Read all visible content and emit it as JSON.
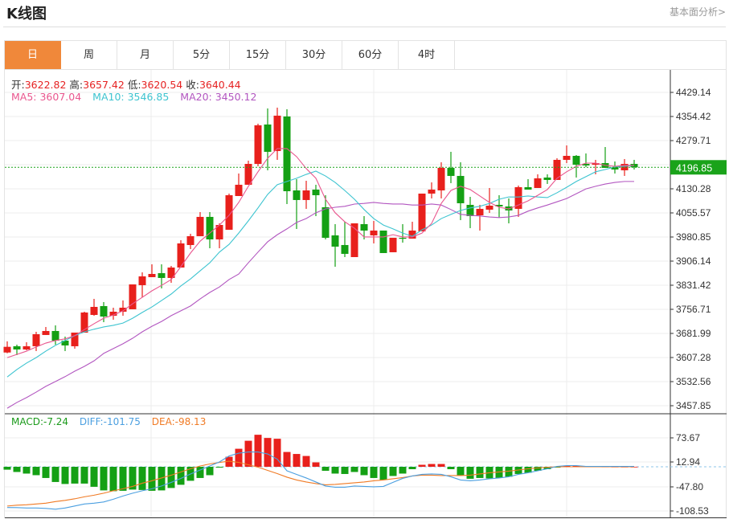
{
  "header": {
    "title": "K线图",
    "link": "基本面分析>"
  },
  "tabs": [
    {
      "label": "日",
      "active": true
    },
    {
      "label": "周"
    },
    {
      "label": "月"
    },
    {
      "label": "5分"
    },
    {
      "label": "15分"
    },
    {
      "label": "30分"
    },
    {
      "label": "60分"
    },
    {
      "label": "4时"
    }
  ],
  "info": {
    "open_label": "开:",
    "open": "3622.82",
    "high_label": "高:",
    "high": "3657.42",
    "low_label": "低:",
    "low": "3620.54",
    "close_label": "收:",
    "close": "3640.44",
    "ma5_label": "MA5: ",
    "ma5": "3607.04",
    "ma10_label": "MA10: ",
    "ma10": "3546.85",
    "ma20_label": "MA20: ",
    "ma20": "3450.12",
    "macd_label": "MACD:",
    "macd": "-7.24",
    "diff_label": "DIFF:",
    "diff": "-101.75",
    "dea_label": "DEA:",
    "dea": "-98.13"
  },
  "colors": {
    "up": "#e8201c",
    "down": "#14a014",
    "ma5": "#e9568e",
    "ma10": "#3dc4d0",
    "ma20": "#b256c0",
    "diff": "#4b9fe0",
    "dea": "#f07a24",
    "tab_active": "#f0883a",
    "last_price_bg": "#1aa31a"
  },
  "chart_data": {
    "type": "candlestick",
    "price_axis": {
      "ticks": [
        "4429.14",
        "4354.42",
        "4279.71",
        "4130.28",
        "4055.57",
        "3980.85",
        "3906.14",
        "3831.42",
        "3756.71",
        "3681.99",
        "3607.28",
        "3532.56",
        "3457.85"
      ],
      "range": [
        3457.85,
        4429.14
      ]
    },
    "last_price": "4196.85",
    "ohlc": [
      [
        3622.82,
        3657.42,
        3620.54,
        3640.44
      ],
      [
        3642.2,
        3647.2,
        3614.8,
        3632.2
      ],
      [
        3632.2,
        3654.6,
        3629.7,
        3642.2
      ],
      [
        3642.2,
        3687.0,
        3627.3,
        3679.5
      ],
      [
        3677.1,
        3701.9,
        3677.1,
        3689.5
      ],
      [
        3689.5,
        3706.9,
        3647.2,
        3659.6
      ],
      [
        3659.6,
        3672.1,
        3627.3,
        3644.7
      ],
      [
        3642.2,
        3684.5,
        3634.7,
        3684.5
      ],
      [
        3684.5,
        3749.3,
        3684.5,
        3746.8
      ],
      [
        3739.3,
        3789.1,
        3736.8,
        3764.2
      ],
      [
        3766.7,
        3779.2,
        3716.9,
        3734.3
      ],
      [
        3736.8,
        3761.7,
        3724.4,
        3749.3
      ],
      [
        3749.3,
        3784.2,
        3736.8,
        3761.7
      ],
      [
        3756.8,
        3833.9,
        3756.8,
        3833.9
      ],
      [
        3831.5,
        3871.3,
        3794.1,
        3858.8
      ],
      [
        3856.4,
        3896.2,
        3856.4,
        3866.3
      ],
      [
        3868.8,
        3896.2,
        3821.5,
        3853.9
      ],
      [
        3853.9,
        3891.2,
        3838.9,
        3886.2
      ],
      [
        3886.2,
        3970.9,
        3886.2,
        3961.0
      ],
      [
        3956.0,
        3990.9,
        3943.5,
        3983.4
      ],
      [
        3983.4,
        4058.1,
        3983.4,
        4043.2
      ],
      [
        4043.2,
        4058.1,
        3946.0,
        3973.4
      ],
      [
        3973.4,
        4023.2,
        3946.0,
        4018.2
      ],
      [
        4003.3,
        4115.4,
        4003.3,
        4110.4
      ],
      [
        4107.9,
        4177.7,
        4107.9,
        4142.8
      ],
      [
        4142.8,
        4217.5,
        4142.8,
        4207.5
      ],
      [
        4207.5,
        4332.1,
        4200.1,
        4327.1
      ],
      [
        4329.6,
        4379.4,
        4187.6,
        4244.9
      ],
      [
        4247.4,
        4381.9,
        4220.0,
        4357.0
      ],
      [
        4354.5,
        4376.9,
        4083.0,
        4122.8
      ],
      [
        4125.3,
        4160.2,
        4005.8,
        4095.5
      ],
      [
        4095.5,
        4155.2,
        4068.1,
        4125.3
      ],
      [
        4127.8,
        4142.8,
        4045.6,
        4110.4
      ],
      [
        4073.1,
        4110.4,
        3973.4,
        3978.4
      ],
      [
        3985.9,
        4020.7,
        3888.7,
        3951.0
      ],
      [
        3956.0,
        4028.2,
        3918.6,
        3928.6
      ],
      [
        3918.6,
        4023.2,
        3918.6,
        4023.2
      ],
      [
        4020.7,
        4045.6,
        3973.4,
        4000.8
      ],
      [
        3985.9,
        4030.7,
        3961.0,
        4000.8
      ],
      [
        4000.8,
        4000.8,
        3931.1,
        3931.1
      ],
      [
        3933.6,
        3978.4,
        3933.6,
        3978.4
      ],
      [
        3978.4,
        4020.7,
        3963.5,
        3975.9
      ],
      [
        3975.9,
        4028.2,
        3975.9,
        4000.8
      ],
      [
        3998.3,
        4115.4,
        3998.3,
        4115.4
      ],
      [
        4115.4,
        4150.2,
        4100.4,
        4127.8
      ],
      [
        4125.3,
        4212.5,
        4100.4,
        4195.1
      ],
      [
        4195.1,
        4244.9,
        4147.8,
        4170.2
      ],
      [
        4170.2,
        4212.5,
        4033.2,
        4085.5
      ],
      [
        4080.5,
        4105.4,
        4008.3,
        4045.6
      ],
      [
        4048.1,
        4080.5,
        4000.8,
        4068.1
      ],
      [
        4065.6,
        4132.8,
        4055.6,
        4078.0
      ],
      [
        4080.5,
        4110.4,
        4040.7,
        4075.5
      ],
      [
        4075.5,
        4100.4,
        4023.2,
        4063.1
      ],
      [
        4068.1,
        4140.3,
        4043.2,
        4135.3
      ],
      [
        4135.3,
        4160.2,
        4127.8,
        4127.8
      ],
      [
        4132.8,
        4175.2,
        4132.8,
        4162.7
      ],
      [
        4165.2,
        4175.2,
        4145.3,
        4157.7
      ],
      [
        4157.7,
        4225.0,
        4157.7,
        4220.0
      ],
      [
        4220.0,
        4264.8,
        4210.0,
        4232.4
      ],
      [
        4232.4,
        4234.9,
        4165.2,
        4205.0
      ],
      [
        4207.5,
        4239.9,
        4197.6,
        4202.6
      ],
      [
        4205.0,
        4220.0,
        4175.2,
        4210.0
      ],
      [
        4210.0,
        4259.8,
        4195.1,
        4195.1
      ],
      [
        4197.6,
        4215.0,
        4177.7,
        4190.1
      ],
      [
        4187.6,
        4222.5,
        4170.2,
        4207.5
      ],
      [
        4207.5,
        4220.0,
        4190.1,
        4196.85
      ]
    ],
    "ma5": [
      3607,
      3617,
      3627,
      3640,
      3652,
      3660,
      3665,
      3675,
      3694,
      3712,
      3729,
      3739,
      3752,
      3774,
      3794,
      3814,
      3831,
      3849,
      3889,
      3931,
      3968,
      3993,
      4018,
      4048,
      4088,
      4138,
      4183,
      4225,
      4255,
      4255,
      4230,
      4193,
      4163,
      4098,
      4056,
      4028,
      4008,
      3981,
      3981,
      3981,
      3988,
      3981,
      3981,
      3993,
      4023,
      4085,
      4125,
      4138,
      4128,
      4108,
      4088,
      4073,
      4068,
      4080,
      4093,
      4110,
      4128,
      4163,
      4183,
      4200,
      4210,
      4210,
      4203,
      4200,
      4203,
      4203
    ],
    "ma10": [
      3547,
      3570,
      3590,
      3607,
      3627,
      3645,
      3660,
      3675,
      3687,
      3695,
      3702,
      3707,
      3714,
      3729,
      3747,
      3764,
      3784,
      3804,
      3829,
      3851,
      3876,
      3901,
      3934,
      3958,
      3993,
      4031,
      4071,
      4113,
      4143,
      4153,
      4163,
      4175,
      4185,
      4170,
      4150,
      4125,
      4098,
      4066,
      4038,
      4018,
      4006,
      3993,
      3983,
      4003,
      4018,
      4038,
      4051,
      4063,
      4071,
      4076,
      4085,
      4098,
      4105,
      4105,
      4108,
      4105,
      4103,
      4118,
      4135,
      4153,
      4168,
      4183,
      4190,
      4198,
      4200,
      4203
    ],
    "ma20": [
      3450,
      3468,
      3483,
      3500,
      3518,
      3533,
      3548,
      3565,
      3580,
      3597,
      3620,
      3635,
      3650,
      3667,
      3687,
      3704,
      3719,
      3737,
      3752,
      3767,
      3789,
      3809,
      3826,
      3849,
      3866,
      3901,
      3934,
      3966,
      3988,
      4006,
      4026,
      4038,
      4056,
      4068,
      4073,
      4076,
      4083,
      4085,
      4088,
      4085,
      4083,
      4083,
      4080,
      4080,
      4083,
      4080,
      4066,
      4051,
      4048,
      4046,
      4043,
      4041,
      4043,
      4048,
      4061,
      4071,
      4080,
      4090,
      4100,
      4115,
      4130,
      4138,
      4145,
      4150,
      4153,
      4153
    ],
    "macd_axis": {
      "ticks": [
        "73.67",
        "12.94",
        "-47.80",
        "-108.53"
      ]
    },
    "macd": [
      -7.24,
      -13,
      -17,
      -21,
      -28,
      -38,
      -43,
      -42,
      -42,
      -50,
      -59,
      -61,
      -60,
      -57,
      -58,
      -60,
      -59,
      -53,
      -45,
      -35,
      -28,
      -21,
      -2,
      25,
      45,
      65,
      80,
      72,
      70,
      37,
      32,
      27,
      11,
      -10,
      -17,
      -18,
      -13,
      -21,
      -28,
      -33,
      -23,
      -17,
      -6,
      5,
      7,
      7,
      -6,
      -21,
      -30,
      -28,
      -29,
      -28,
      -25,
      -18,
      -15,
      -10,
      -6,
      -2,
      2,
      3,
      2,
      1,
      0.5,
      0.3,
      0.2,
      0.1
    ],
    "diff": [
      -101.75,
      -102,
      -103,
      -103,
      -104,
      -106,
      -103,
      -98,
      -93,
      -91,
      -88,
      -81,
      -73,
      -66,
      -60,
      -55,
      -48,
      -39,
      -29,
      -18,
      -8,
      2,
      12,
      27,
      34,
      37,
      37,
      32,
      19,
      -10,
      -19,
      -28,
      -38,
      -48,
      -51,
      -51,
      -48,
      -49,
      -50,
      -49,
      -39,
      -29,
      -23,
      -19,
      -18,
      -19,
      -25,
      -33,
      -35,
      -33,
      -30,
      -28,
      -25,
      -19,
      -15,
      -10,
      -5,
      1,
      3,
      3,
      1,
      1,
      1,
      1,
      1,
      1
    ],
    "dea": [
      -98.13,
      -96,
      -95,
      -93,
      -91,
      -87,
      -84,
      -80,
      -75,
      -71,
      -66,
      -60,
      -55,
      -49,
      -41,
      -35,
      -28,
      -21,
      -13,
      -5,
      2,
      7,
      11,
      14,
      11,
      5,
      -1,
      -9,
      -17,
      -26,
      -33,
      -38,
      -42,
      -45,
      -44,
      -42,
      -40,
      -38,
      -35,
      -33,
      -30,
      -27,
      -23,
      -21,
      -21,
      -22,
      -22,
      -22,
      -21,
      -18,
      -15,
      -13,
      -11,
      -8,
      -5,
      -3,
      -1,
      0,
      0,
      0,
      0,
      0,
      0,
      0,
      0,
      0
    ]
  }
}
